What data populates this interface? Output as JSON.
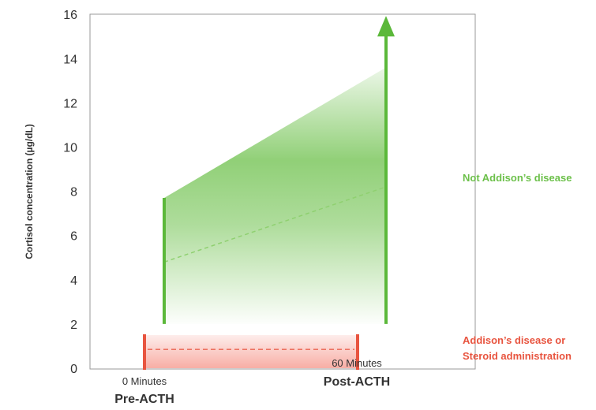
{
  "chart_data": {
    "type": "area",
    "ylabel": "Cortisol concentration (µg/dL)",
    "ylim": [
      0,
      16
    ],
    "yticks": [
      "0",
      "2",
      "4",
      "6",
      "8",
      "10",
      "12",
      "14",
      "16"
    ],
    "grid": false,
    "x_categories": [
      {
        "sub": "0 Minutes",
        "main": "Pre-ACTH"
      },
      {
        "sub": "60 Minutes",
        "main": "Post-ACTH"
      }
    ],
    "series": [
      {
        "name": "Not Addison’s disease",
        "color": "#6cc04a",
        "lower_bound": [
          2,
          2
        ],
        "upper_bound": [
          7.7,
          13.6
        ],
        "median": [
          4.8,
          8.2
        ],
        "arrow_top": 16
      },
      {
        "name": "Addison’s disease or Steroid administration",
        "label_lines": [
          "Addison’s disease or",
          "Steroid administration"
        ],
        "color": "#e8543f",
        "lower_bound": [
          0,
          0
        ],
        "upper_bound": [
          1.5,
          1.5
        ],
        "median": [
          0.85,
          0.85
        ]
      }
    ]
  }
}
